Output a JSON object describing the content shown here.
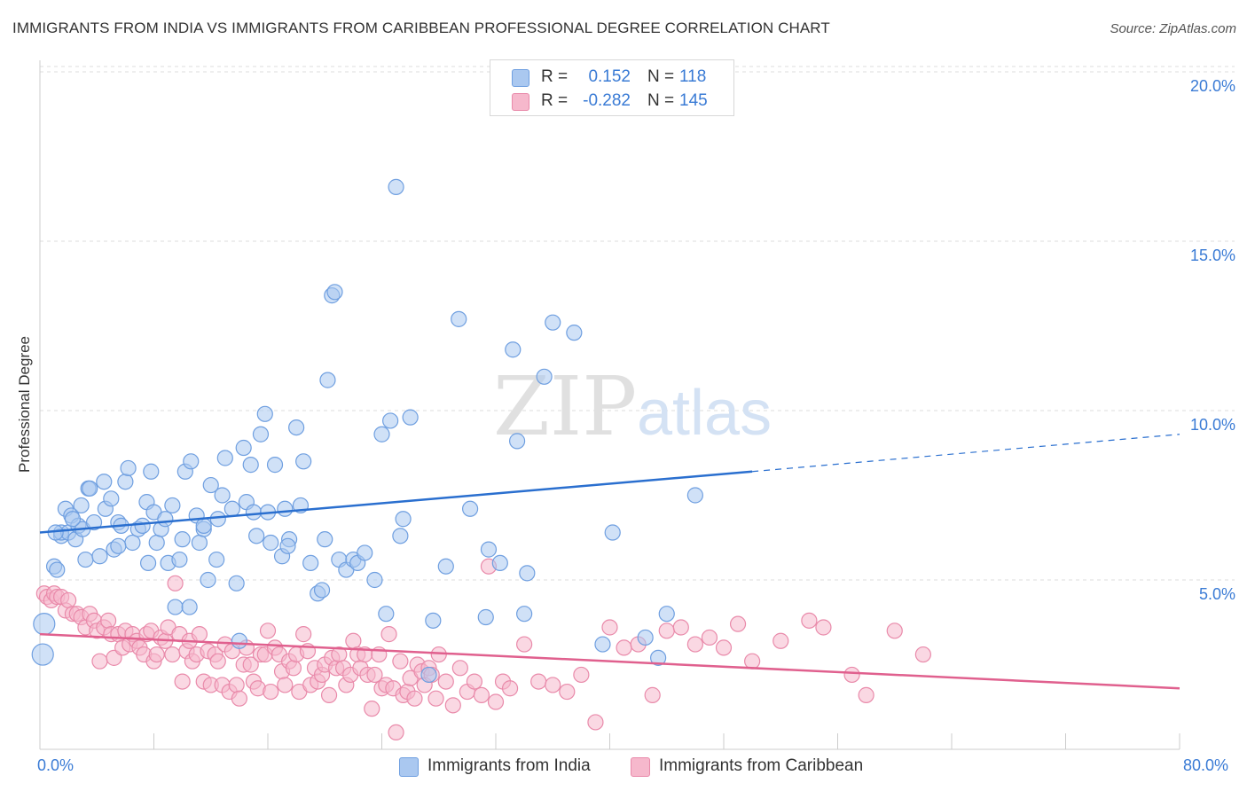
{
  "title": "IMMIGRANTS FROM INDIA VS IMMIGRANTS FROM CARIBBEAN PROFESSIONAL DEGREE CORRELATION CHART",
  "source": "Source: ZipAtlas.com",
  "watermark": {
    "zip": "ZIP",
    "atlas": "atlas"
  },
  "legend_top": [
    {
      "r_label": "R =",
      "r_value": "0.152",
      "n_label": "N =",
      "n_value": "118"
    },
    {
      "r_label": "R =",
      "r_value": "-0.282",
      "n_label": "N =",
      "n_value": "145"
    }
  ],
  "colors": {
    "india_fill": "#aac8f0",
    "india_stroke": "#6f9fe0",
    "india_line": "#2a6fcf",
    "carib_fill": "#f6b8cc",
    "carib_stroke": "#e98aaa",
    "carib_line": "#e0608e",
    "tick_text": "#3a7bd5",
    "grid": "#dddddd"
  },
  "chart_data": {
    "type": "scatter",
    "ylabel": "Professional Degree",
    "xlim": [
      0,
      80
    ],
    "ylim": [
      0,
      20
    ],
    "x_tick_labels": {
      "min": "0.0%",
      "max": "80.0%"
    },
    "y_ticks": [
      {
        "value": 5,
        "label": "5.0%"
      },
      {
        "value": 10,
        "label": "10.0%"
      },
      {
        "value": 15,
        "label": "15.0%"
      },
      {
        "value": 20,
        "label": "20.0%"
      }
    ],
    "grid": "horizontal-dashed",
    "legend_placement": "bottom",
    "series": [
      {
        "name": "Immigrants from India",
        "trend": {
          "x0": 0,
          "y0": 6.4,
          "x1": 50,
          "y1": 8.2,
          "dashed_to_x": 80,
          "dashed_to_y": 9.3
        },
        "points": [
          [
            0.2,
            2.8
          ],
          [
            0.3,
            3.7
          ],
          [
            1.0,
            5.4
          ],
          [
            1.2,
            5.3
          ],
          [
            1.5,
            6.3
          ],
          [
            1.5,
            6.4
          ],
          [
            1.8,
            7.1
          ],
          [
            2.0,
            6.4
          ],
          [
            2.2,
            6.9
          ],
          [
            2.5,
            6.2
          ],
          [
            2.7,
            6.6
          ],
          [
            3.0,
            6.5
          ],
          [
            3.2,
            5.6
          ],
          [
            3.4,
            7.7
          ],
          [
            3.5,
            7.7
          ],
          [
            3.8,
            6.7
          ],
          [
            4.2,
            5.7
          ],
          [
            4.5,
            7.9
          ],
          [
            4.6,
            7.1
          ],
          [
            5.0,
            7.4
          ],
          [
            5.2,
            5.9
          ],
          [
            5.5,
            6.7
          ],
          [
            5.7,
            6.6
          ],
          [
            6.0,
            7.9
          ],
          [
            6.2,
            8.3
          ],
          [
            6.5,
            6.1
          ],
          [
            6.9,
            6.5
          ],
          [
            7.2,
            6.6
          ],
          [
            7.5,
            7.3
          ],
          [
            7.8,
            8.2
          ],
          [
            8.0,
            7.0
          ],
          [
            8.2,
            6.1
          ],
          [
            8.5,
            6.5
          ],
          [
            8.8,
            6.8
          ],
          [
            9.0,
            5.5
          ],
          [
            9.3,
            7.2
          ],
          [
            9.5,
            4.2
          ],
          [
            9.8,
            5.6
          ],
          [
            10.0,
            6.2
          ],
          [
            10.2,
            8.2
          ],
          [
            10.5,
            4.2
          ],
          [
            10.6,
            8.5
          ],
          [
            11.0,
            6.9
          ],
          [
            11.2,
            6.1
          ],
          [
            11.5,
            6.5
          ],
          [
            11.8,
            5.0
          ],
          [
            12.0,
            7.8
          ],
          [
            12.4,
            5.6
          ],
          [
            12.5,
            6.8
          ],
          [
            12.8,
            7.5
          ],
          [
            13.0,
            8.6
          ],
          [
            13.5,
            7.1
          ],
          [
            13.8,
            4.9
          ],
          [
            14.0,
            3.2
          ],
          [
            14.3,
            8.9
          ],
          [
            14.5,
            7.3
          ],
          [
            14.8,
            8.4
          ],
          [
            15.0,
            7.0
          ],
          [
            15.5,
            9.3
          ],
          [
            15.8,
            9.9
          ],
          [
            16.0,
            7.0
          ],
          [
            16.2,
            6.1
          ],
          [
            16.5,
            8.4
          ],
          [
            17.0,
            5.7
          ],
          [
            17.2,
            7.1
          ],
          [
            17.5,
            6.2
          ],
          [
            18.0,
            9.5
          ],
          [
            18.3,
            7.2
          ],
          [
            18.5,
            8.5
          ],
          [
            19.0,
            5.5
          ],
          [
            19.5,
            4.6
          ],
          [
            19.8,
            4.7
          ],
          [
            20.0,
            6.2
          ],
          [
            20.2,
            10.9
          ],
          [
            20.5,
            13.4
          ],
          [
            20.7,
            13.5
          ],
          [
            21.0,
            5.6
          ],
          [
            21.5,
            5.3
          ],
          [
            22.0,
            5.6
          ],
          [
            22.3,
            5.5
          ],
          [
            22.8,
            5.8
          ],
          [
            23.5,
            5.0
          ],
          [
            24.0,
            9.3
          ],
          [
            24.3,
            4.0
          ],
          [
            24.6,
            9.7
          ],
          [
            25.0,
            16.6
          ],
          [
            25.3,
            6.3
          ],
          [
            25.5,
            6.8
          ],
          [
            27.3,
            2.2
          ],
          [
            27.6,
            3.8
          ],
          [
            28.5,
            5.4
          ],
          [
            29.4,
            12.7
          ],
          [
            30.2,
            7.1
          ],
          [
            31.3,
            3.9
          ],
          [
            32.3,
            5.5
          ],
          [
            33.2,
            11.8
          ],
          [
            33.5,
            9.1
          ],
          [
            34.0,
            4.0
          ],
          [
            34.2,
            5.2
          ],
          [
            35.4,
            11.0
          ],
          [
            36.0,
            12.6
          ],
          [
            37.5,
            12.3
          ],
          [
            39.5,
            3.1
          ],
          [
            40.2,
            6.4
          ],
          [
            42.5,
            3.3
          ],
          [
            43.4,
            2.7
          ],
          [
            44.0,
            4.0
          ],
          [
            46.0,
            7.5
          ],
          [
            5.5,
            6.0
          ],
          [
            15.2,
            6.3
          ],
          [
            17.4,
            6.0
          ],
          [
            1.1,
            6.4
          ],
          [
            2.3,
            6.8
          ],
          [
            26.0,
            9.8
          ],
          [
            11.5,
            6.6
          ],
          [
            7.6,
            5.5
          ],
          [
            2.9,
            7.2
          ],
          [
            31.5,
            5.9
          ]
        ]
      },
      {
        "name": "Immigrants from Caribbean",
        "trend": {
          "x0": 0,
          "y0": 3.4,
          "x1": 80,
          "y1": 1.8
        },
        "points": [
          [
            0.3,
            4.6
          ],
          [
            0.5,
            4.5
          ],
          [
            0.8,
            4.4
          ],
          [
            1.0,
            4.6
          ],
          [
            1.2,
            4.5
          ],
          [
            1.5,
            4.5
          ],
          [
            1.8,
            4.1
          ],
          [
            2.0,
            4.4
          ],
          [
            2.3,
            4.0
          ],
          [
            2.6,
            4.0
          ],
          [
            2.9,
            3.9
          ],
          [
            3.2,
            3.6
          ],
          [
            3.5,
            4.0
          ],
          [
            3.8,
            3.8
          ],
          [
            4.0,
            3.5
          ],
          [
            4.2,
            2.6
          ],
          [
            4.5,
            3.6
          ],
          [
            4.8,
            3.8
          ],
          [
            5.0,
            3.4
          ],
          [
            5.2,
            2.7
          ],
          [
            5.5,
            3.4
          ],
          [
            5.8,
            3.0
          ],
          [
            6.0,
            3.5
          ],
          [
            6.3,
            3.1
          ],
          [
            6.5,
            3.4
          ],
          [
            6.8,
            3.2
          ],
          [
            7.0,
            3.0
          ],
          [
            7.3,
            2.8
          ],
          [
            7.5,
            3.4
          ],
          [
            7.8,
            3.5
          ],
          [
            8.0,
            2.6
          ],
          [
            8.2,
            2.8
          ],
          [
            8.5,
            3.3
          ],
          [
            8.8,
            3.2
          ],
          [
            9.0,
            3.6
          ],
          [
            9.3,
            2.8
          ],
          [
            9.5,
            4.9
          ],
          [
            9.8,
            3.4
          ],
          [
            10.0,
            2.0
          ],
          [
            10.3,
            2.9
          ],
          [
            10.5,
            3.2
          ],
          [
            10.7,
            2.6
          ],
          [
            11.0,
            2.8
          ],
          [
            11.2,
            3.4
          ],
          [
            11.5,
            2.0
          ],
          [
            11.8,
            2.9
          ],
          [
            12.0,
            1.9
          ],
          [
            12.3,
            2.8
          ],
          [
            12.5,
            2.6
          ],
          [
            12.8,
            1.9
          ],
          [
            13.0,
            3.1
          ],
          [
            13.3,
            1.7
          ],
          [
            13.5,
            2.9
          ],
          [
            13.8,
            1.9
          ],
          [
            14.0,
            1.5
          ],
          [
            14.3,
            2.5
          ],
          [
            14.5,
            3.0
          ],
          [
            14.8,
            2.5
          ],
          [
            15.0,
            2.0
          ],
          [
            15.3,
            1.8
          ],
          [
            15.5,
            2.8
          ],
          [
            15.8,
            2.8
          ],
          [
            16.0,
            3.5
          ],
          [
            16.2,
            1.7
          ],
          [
            16.5,
            3.0
          ],
          [
            16.8,
            2.8
          ],
          [
            17.0,
            2.3
          ],
          [
            17.2,
            1.9
          ],
          [
            17.5,
            2.6
          ],
          [
            17.8,
            2.4
          ],
          [
            18.0,
            2.8
          ],
          [
            18.2,
            1.7
          ],
          [
            18.5,
            3.4
          ],
          [
            18.8,
            2.9
          ],
          [
            19.0,
            1.9
          ],
          [
            19.3,
            2.4
          ],
          [
            19.5,
            2.0
          ],
          [
            19.8,
            2.2
          ],
          [
            20.0,
            2.5
          ],
          [
            20.3,
            1.6
          ],
          [
            20.5,
            2.7
          ],
          [
            20.8,
            2.4
          ],
          [
            21.0,
            2.8
          ],
          [
            21.3,
            2.4
          ],
          [
            21.5,
            1.9
          ],
          [
            21.8,
            2.2
          ],
          [
            22.0,
            3.2
          ],
          [
            22.3,
            2.8
          ],
          [
            22.5,
            2.4
          ],
          [
            22.8,
            2.8
          ],
          [
            23.0,
            2.2
          ],
          [
            23.3,
            1.2
          ],
          [
            23.5,
            2.2
          ],
          [
            23.8,
            2.8
          ],
          [
            24.0,
            1.8
          ],
          [
            24.3,
            1.9
          ],
          [
            24.5,
            3.4
          ],
          [
            24.8,
            1.8
          ],
          [
            25.0,
            0.5
          ],
          [
            25.3,
            2.6
          ],
          [
            25.5,
            1.6
          ],
          [
            25.8,
            1.7
          ],
          [
            26.0,
            2.1
          ],
          [
            26.3,
            1.5
          ],
          [
            26.5,
            2.5
          ],
          [
            26.8,
            2.3
          ],
          [
            27.0,
            1.9
          ],
          [
            27.3,
            2.4
          ],
          [
            27.5,
            2.2
          ],
          [
            27.8,
            1.5
          ],
          [
            28.0,
            2.8
          ],
          [
            28.5,
            2.0
          ],
          [
            29.0,
            1.3
          ],
          [
            29.5,
            2.4
          ],
          [
            30.0,
            1.7
          ],
          [
            30.5,
            2.0
          ],
          [
            31.0,
            1.6
          ],
          [
            31.5,
            5.4
          ],
          [
            32.0,
            1.4
          ],
          [
            32.5,
            2.0
          ],
          [
            33.0,
            1.8
          ],
          [
            34.0,
            3.1
          ],
          [
            35.0,
            2.0
          ],
          [
            36.0,
            1.9
          ],
          [
            37.0,
            1.7
          ],
          [
            38.0,
            2.2
          ],
          [
            39.0,
            0.8
          ],
          [
            40.0,
            3.6
          ],
          [
            41.0,
            3.0
          ],
          [
            42.0,
            3.1
          ],
          [
            43.0,
            1.6
          ],
          [
            44.0,
            3.5
          ],
          [
            45.0,
            3.6
          ],
          [
            46.0,
            3.1
          ],
          [
            47.0,
            3.3
          ],
          [
            48.0,
            3.0
          ],
          [
            49.0,
            3.7
          ],
          [
            50.0,
            2.6
          ],
          [
            52.0,
            3.2
          ],
          [
            54.0,
            3.8
          ],
          [
            55.0,
            3.6
          ],
          [
            57.0,
            2.2
          ],
          [
            58.0,
            1.6
          ],
          [
            60.0,
            3.5
          ],
          [
            62.0,
            2.8
          ]
        ]
      }
    ]
  },
  "legend_bottom": [
    {
      "label": "Immigrants from India"
    },
    {
      "label": "Immigrants from Caribbean"
    }
  ]
}
